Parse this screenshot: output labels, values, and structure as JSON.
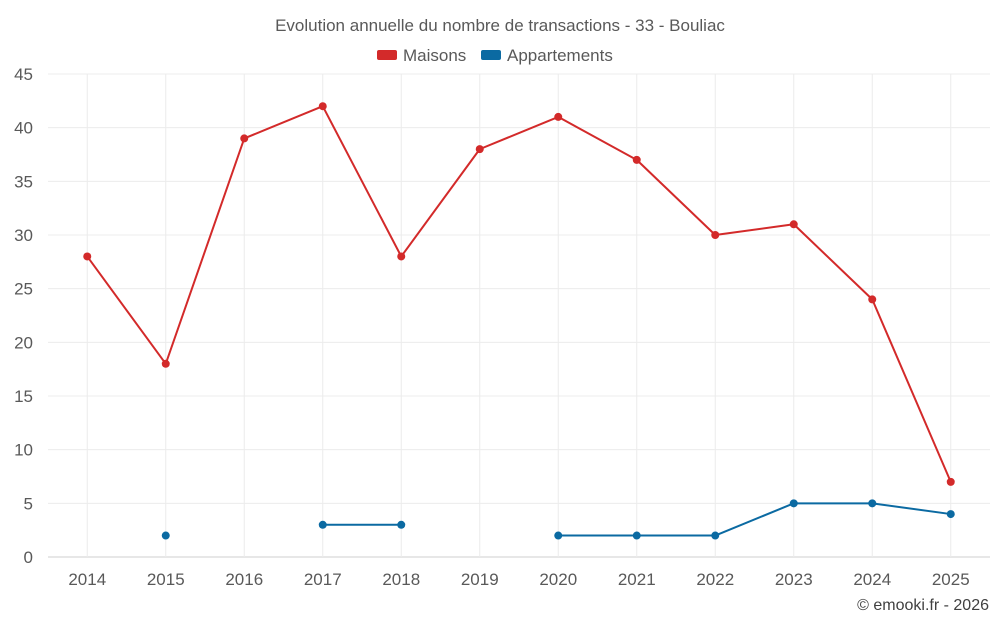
{
  "chart_data": {
    "type": "line",
    "title": "Evolution annuelle du nombre de transactions - 33 - Bouliac",
    "categories": [
      "2014",
      "2015",
      "2016",
      "2017",
      "2018",
      "2019",
      "2020",
      "2021",
      "2022",
      "2023",
      "2024",
      "2025"
    ],
    "series": [
      {
        "name": "Maisons",
        "color": "#d32a2a",
        "values": [
          28,
          18,
          39,
          42,
          28,
          38,
          41,
          37,
          30,
          31,
          24,
          7
        ]
      },
      {
        "name": "Appartements",
        "color": "#0b6aa2",
        "values": [
          null,
          2,
          null,
          3,
          3,
          null,
          2,
          2,
          2,
          5,
          5,
          4
        ]
      }
    ],
    "ylim": [
      0,
      45
    ],
    "yticks": [
      0,
      5,
      10,
      15,
      20,
      25,
      30,
      35,
      40,
      45
    ],
    "xlabel": "",
    "ylabel": "",
    "grid": true,
    "legend_position": "top-center"
  },
  "credit": "© emooki.fr - 2026"
}
